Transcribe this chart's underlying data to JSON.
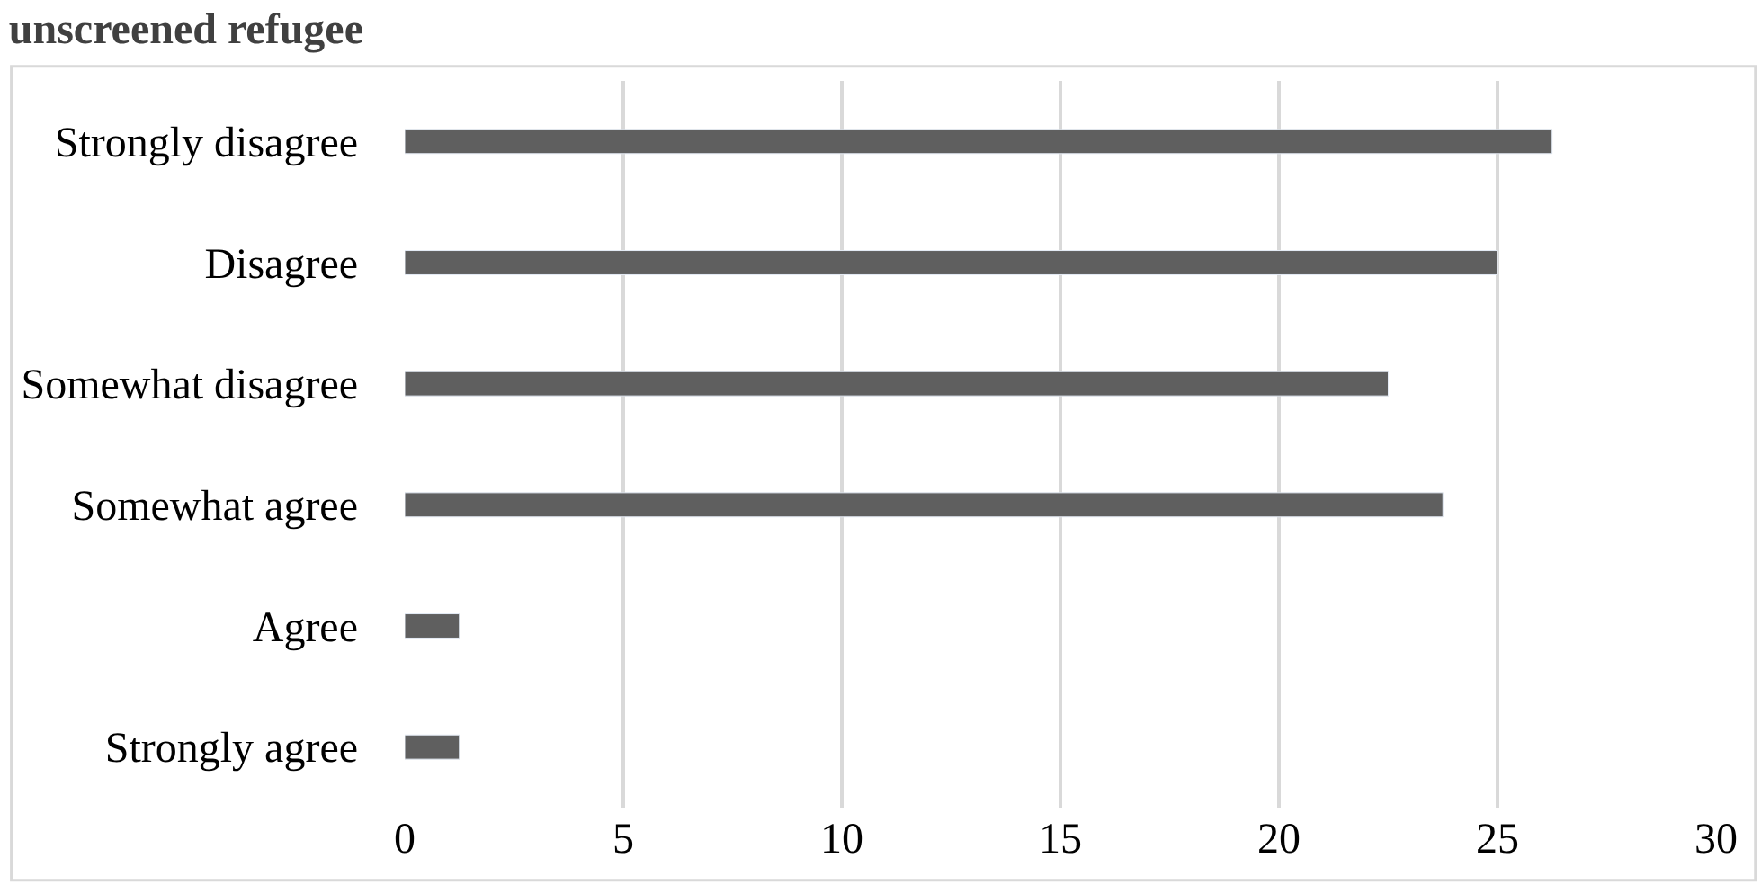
{
  "chart_data": {
    "type": "bar",
    "orientation": "horizontal",
    "title": "unscreened refugee",
    "categories": [
      "Strongly disagree",
      "Disagree",
      "Somewhat disagree",
      "Somewhat agree",
      "Agree",
      "Strongly agree"
    ],
    "values": [
      26.25,
      25,
      22.5,
      23.75,
      1.25,
      1.25
    ],
    "color": "#5f5f5f",
    "xlim": [
      0,
      30
    ],
    "xticks": [
      0,
      5,
      10,
      15,
      20,
      25,
      30
    ],
    "grid": "x"
  }
}
